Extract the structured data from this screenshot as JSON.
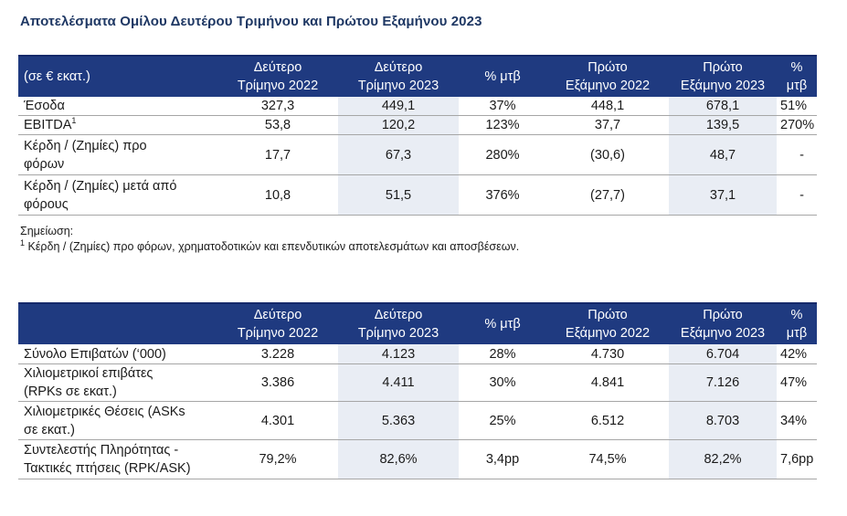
{
  "title": "Αποτελέσματα Ομίλου Δευτέρου Τριμήνου και Πρώτου Εξαμήνου 2023",
  "table1": {
    "headers": [
      [
        "(σε € εκατ.)"
      ],
      [
        "Δεύτερο",
        "Τρίμηνο 2022"
      ],
      [
        "Δεύτερο",
        "Τρίμηνο 2023"
      ],
      [
        "% μτβ"
      ],
      [
        "Πρώτο",
        "Εξάμηνο 2022"
      ],
      [
        "Πρώτο",
        "Εξάμηνο 2023"
      ],
      [
        "%",
        "μτβ"
      ]
    ],
    "rows": [
      {
        "label": [
          "Έσοδα"
        ],
        "values": [
          "327,3",
          "449,1",
          "37%",
          "448,1",
          "678,1",
          "51%"
        ]
      },
      {
        "label": [
          "EBITDA"
        ],
        "sup": "1",
        "values": [
          "53,8",
          "120,2",
          "123%",
          "37,7",
          "139,5",
          "270%"
        ]
      },
      {
        "label": [
          "Κέρδη / (Ζημίες) προ",
          "φόρων"
        ],
        "values": [
          "17,7",
          "67,3",
          "280%",
          "(30,6)",
          "48,7",
          "-"
        ]
      },
      {
        "label": [
          "Κέρδη / (Ζημίες) μετά από",
          "φόρους"
        ],
        "values": [
          "10,8",
          "51,5",
          "376%",
          "(27,7)",
          "37,1",
          "-"
        ]
      }
    ]
  },
  "notes": {
    "heading": "Σημείωση:",
    "footnote_mark": "1",
    "footnote": " Κέρδη / (Ζημίες) προ φόρων, χρηματοδοτικών και επενδυτικών αποτελεσμάτων και αποσβέσεων."
  },
  "table2": {
    "headers": [
      [
        ""
      ],
      [
        "Δεύτερο",
        "Τρίμηνο 2022"
      ],
      [
        "Δεύτερο",
        "Τρίμηνο 2023"
      ],
      [
        "% μτβ"
      ],
      [
        "Πρώτο",
        "Εξάμηνο 2022"
      ],
      [
        "Πρώτο",
        "Εξάμηνο 2023"
      ],
      [
        "% μτβ"
      ]
    ],
    "rows": [
      {
        "label": [
          "Σύνολο Επιβατών (‘000)"
        ],
        "values": [
          "3.228",
          "4.123",
          "28%",
          "4.730",
          "6.704",
          "42%"
        ]
      },
      {
        "label": [
          "Χιλιομετρικοί επιβάτες",
          "(RPKs σε εκατ.)"
        ],
        "values": [
          "3.386",
          "4.411",
          "30%",
          "4.841",
          "7.126",
          "47%"
        ]
      },
      {
        "label": [
          "Χιλιομετρικές Θέσεις (ASKs",
          "σε εκατ.)"
        ],
        "values": [
          "4.301",
          "5.363",
          "25%",
          "6.512",
          "8.703",
          "34%"
        ]
      },
      {
        "label": [
          "Συντελεστής Πληρότητας -",
          "Τακτικές πτήσεις (RPK/ASK)"
        ],
        "values": [
          "79,2%",
          "82,6%",
          "3,4pp",
          "74,5%",
          "82,2%",
          "7,6pp"
        ]
      }
    ]
  }
}
